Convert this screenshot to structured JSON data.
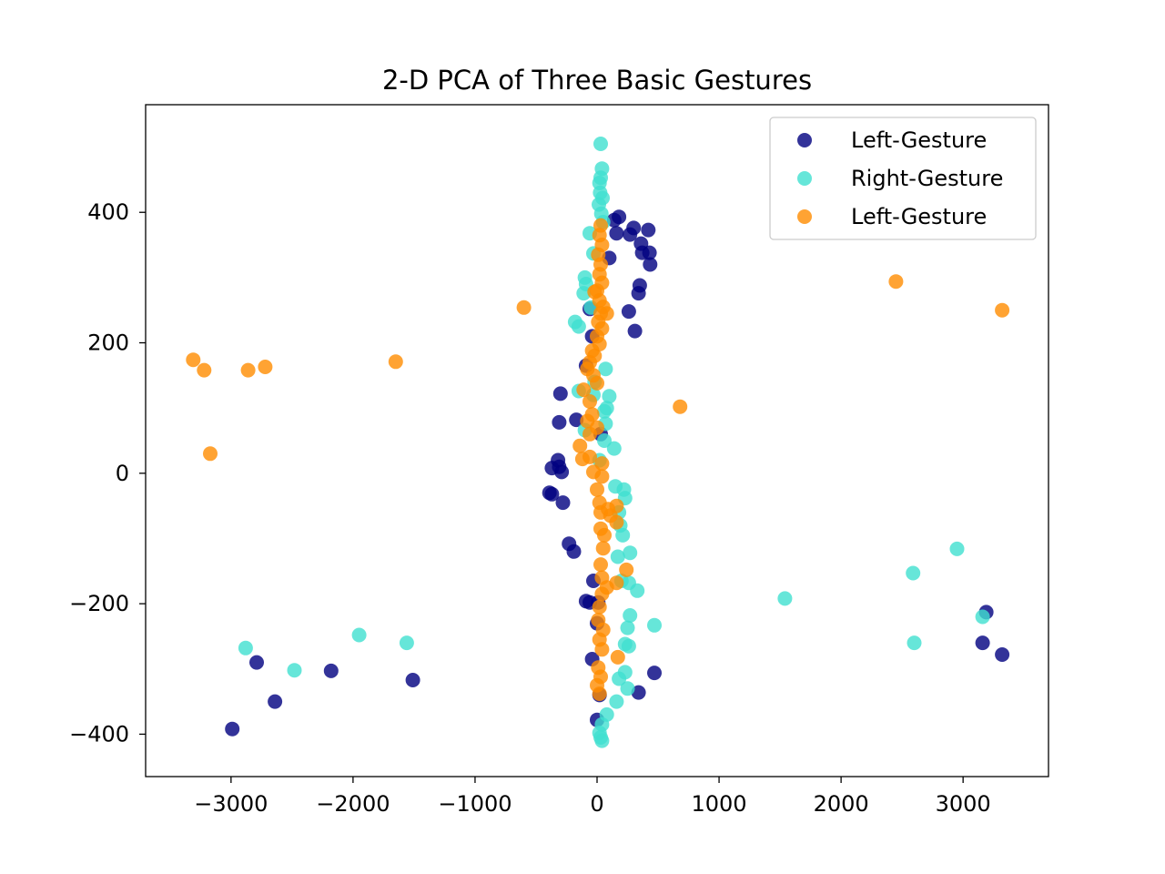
{
  "chart_data": {
    "type": "scatter",
    "title": "2-D PCA of Three Basic Gestures",
    "xlabel": "",
    "ylabel": "",
    "xlim": [
      -3700,
      3700
    ],
    "ylim": [
      -465,
      565
    ],
    "xticks": [
      -3000,
      -2000,
      -1000,
      0,
      1000,
      2000,
      3000
    ],
    "xtick_labels": [
      "−3000",
      "−2000",
      "−1000",
      "0",
      "1000",
      "2000",
      "3000"
    ],
    "yticks": [
      -400,
      -200,
      0,
      200,
      400
    ],
    "ytick_labels": [
      "−400",
      "−200",
      "0",
      "200",
      "400"
    ],
    "grid": false,
    "legend_position": "top-right",
    "series": [
      {
        "name": "Left-Gesture",
        "color": "#000080",
        "points": [
          [
            140,
            388
          ],
          [
            180,
            393
          ],
          [
            270,
            366
          ],
          [
            300,
            376
          ],
          [
            360,
            352
          ],
          [
            420,
            373
          ],
          [
            370,
            338
          ],
          [
            430,
            338
          ],
          [
            435,
            320
          ],
          [
            160,
            368
          ],
          [
            100,
            330
          ],
          [
            350,
            288
          ],
          [
            340,
            276
          ],
          [
            260,
            248
          ],
          [
            310,
            218
          ],
          [
            -60,
            252
          ],
          [
            -40,
            210
          ],
          [
            -90,
            165
          ],
          [
            -300,
            122
          ],
          [
            -170,
            82
          ],
          [
            -310,
            78
          ],
          [
            -320,
            20
          ],
          [
            -310,
            10
          ],
          [
            -370,
            8
          ],
          [
            -290,
            2
          ],
          [
            -390,
            -30
          ],
          [
            -370,
            -32
          ],
          [
            -280,
            -45
          ],
          [
            30,
            60
          ],
          [
            -230,
            -108
          ],
          [
            -190,
            -120
          ],
          [
            -30,
            -165
          ],
          [
            -90,
            -196
          ],
          [
            -60,
            -198
          ],
          [
            10,
            -198
          ],
          [
            0,
            -230
          ],
          [
            -40,
            -285
          ],
          [
            340,
            -336
          ],
          [
            470,
            -306
          ],
          [
            20,
            -340
          ],
          [
            0,
            -378
          ],
          [
            -2990,
            -392
          ],
          [
            -2790,
            -290
          ],
          [
            -2640,
            -350
          ],
          [
            -2180,
            -303
          ],
          [
            -1510,
            -317
          ],
          [
            3190,
            -213
          ],
          [
            3160,
            -260
          ],
          [
            3320,
            -278
          ]
        ]
      },
      {
        "name": "Right-Gesture",
        "color": "#40E0D0",
        "points": [
          [
            30,
            505
          ],
          [
            40,
            467
          ],
          [
            30,
            453
          ],
          [
            20,
            445
          ],
          [
            25,
            430
          ],
          [
            45,
            422
          ],
          [
            15,
            412
          ],
          [
            35,
            398
          ],
          [
            50,
            385
          ],
          [
            -60,
            368
          ],
          [
            -30,
            337
          ],
          [
            -100,
            300
          ],
          [
            -90,
            290
          ],
          [
            -110,
            276
          ],
          [
            -50,
            254
          ],
          [
            -180,
            232
          ],
          [
            -150,
            225
          ],
          [
            70,
            160
          ],
          [
            -20,
            140
          ],
          [
            -150,
            126
          ],
          [
            -30,
            120
          ],
          [
            100,
            118
          ],
          [
            80,
            100
          ],
          [
            60,
            95
          ],
          [
            70,
            76
          ],
          [
            -100,
            66
          ],
          [
            60,
            50
          ],
          [
            140,
            38
          ],
          [
            20,
            20
          ],
          [
            150,
            -20
          ],
          [
            220,
            -25
          ],
          [
            230,
            -38
          ],
          [
            180,
            -60
          ],
          [
            190,
            -80
          ],
          [
            210,
            -95
          ],
          [
            270,
            -122
          ],
          [
            170,
            -128
          ],
          [
            200,
            -165
          ],
          [
            260,
            -168
          ],
          [
            330,
            -180
          ],
          [
            270,
            -218
          ],
          [
            250,
            -237
          ],
          [
            470,
            -233
          ],
          [
            230,
            -262
          ],
          [
            260,
            -265
          ],
          [
            230,
            -305
          ],
          [
            180,
            -315
          ],
          [
            250,
            -330
          ],
          [
            160,
            -350
          ],
          [
            80,
            -370
          ],
          [
            40,
            -385
          ],
          [
            20,
            -398
          ],
          [
            30,
            -405
          ],
          [
            40,
            -410
          ],
          [
            -2880,
            -268
          ],
          [
            -2480,
            -302
          ],
          [
            -1950,
            -248
          ],
          [
            -1560,
            -260
          ],
          [
            1540,
            -192
          ],
          [
            2590,
            -153
          ],
          [
            2950,
            -116
          ],
          [
            2600,
            -260
          ],
          [
            3160,
            -220
          ]
        ]
      },
      {
        "name": "Left-Gesture",
        "color": "#FF8C00",
        "points": [
          [
            30,
            380
          ],
          [
            20,
            365
          ],
          [
            40,
            350
          ],
          [
            10,
            335
          ],
          [
            30,
            320
          ],
          [
            20,
            305
          ],
          [
            40,
            292
          ],
          [
            0,
            280
          ],
          [
            -20,
            278
          ],
          [
            20,
            265
          ],
          [
            50,
            255
          ],
          [
            30,
            245
          ],
          [
            80,
            245
          ],
          [
            10,
            232
          ],
          [
            40,
            222
          ],
          [
            0,
            210
          ],
          [
            20,
            198
          ],
          [
            -40,
            188
          ],
          [
            -20,
            180
          ],
          [
            -60,
            170
          ],
          [
            -80,
            160
          ],
          [
            -30,
            150
          ],
          [
            0,
            138
          ],
          [
            -110,
            128
          ],
          [
            -60,
            110
          ],
          [
            -40,
            90
          ],
          [
            -80,
            80
          ],
          [
            0,
            70
          ],
          [
            -60,
            60
          ],
          [
            -140,
            42
          ],
          [
            -120,
            22
          ],
          [
            -60,
            25
          ],
          [
            40,
            15
          ],
          [
            -30,
            2
          ],
          [
            40,
            -5
          ],
          [
            0,
            -25
          ],
          [
            20,
            -45
          ],
          [
            160,
            -50
          ],
          [
            90,
            -55
          ],
          [
            30,
            -60
          ],
          [
            110,
            -65
          ],
          [
            160,
            -75
          ],
          [
            30,
            -85
          ],
          [
            60,
            -95
          ],
          [
            50,
            -115
          ],
          [
            30,
            -140
          ],
          [
            40,
            -160
          ],
          [
            240,
            -148
          ],
          [
            160,
            -168
          ],
          [
            80,
            -175
          ],
          [
            40,
            -185
          ],
          [
            20,
            -205
          ],
          [
            10,
            -225
          ],
          [
            50,
            -240
          ],
          [
            20,
            -255
          ],
          [
            40,
            -270
          ],
          [
            170,
            -282
          ],
          [
            10,
            -298
          ],
          [
            30,
            -312
          ],
          [
            0,
            -325
          ],
          [
            20,
            -338
          ],
          [
            -3310,
            174
          ],
          [
            -3220,
            158
          ],
          [
            -2860,
            158
          ],
          [
            -2720,
            163
          ],
          [
            -1650,
            171
          ],
          [
            -3170,
            30
          ],
          [
            -600,
            254
          ],
          [
            680,
            102
          ],
          [
            2450,
            294
          ],
          [
            3320,
            250
          ]
        ]
      }
    ]
  }
}
